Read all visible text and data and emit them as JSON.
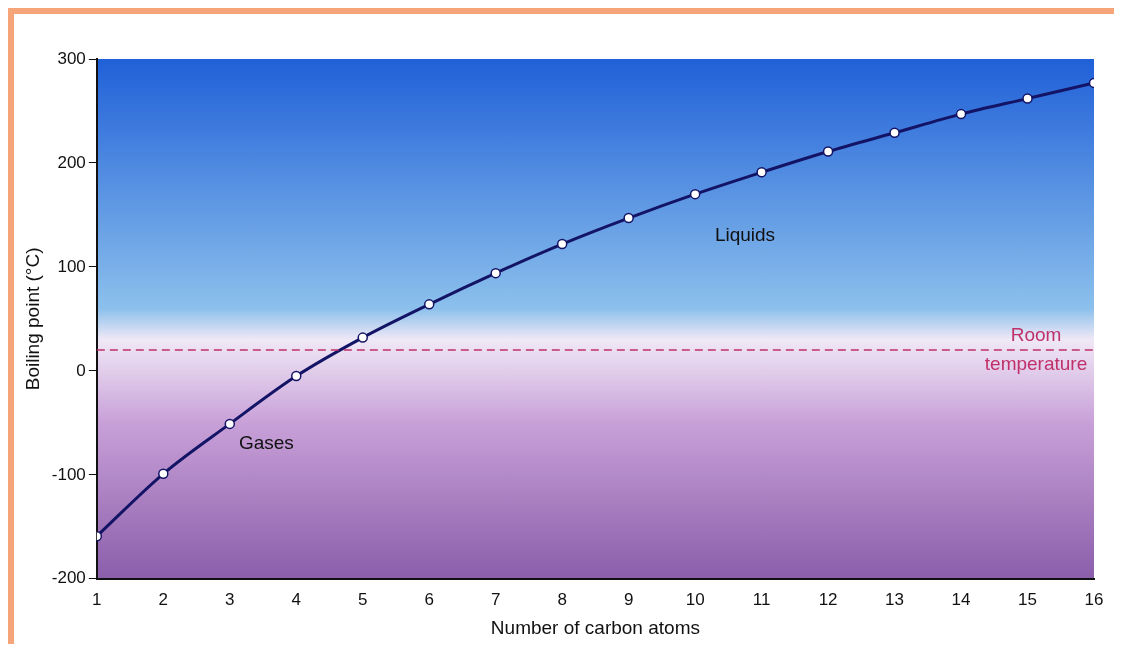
{
  "chart_data": {
    "type": "line",
    "xlabel": "Number of carbon atoms",
    "ylabel": "Boiling point (°C)",
    "x": [
      1,
      2,
      3,
      4,
      5,
      6,
      7,
      8,
      9,
      10,
      11,
      12,
      13,
      14,
      15,
      16
    ],
    "series": [
      {
        "color": "#141466",
        "values": [
          -159,
          -99,
          -51,
          -5,
          32,
          64,
          94,
          122,
          147,
          170,
          191,
          211,
          229,
          247,
          262,
          277
        ]
      }
    ],
    "xlim": [
      1,
      16
    ],
    "xticks": [
      1,
      2,
      3,
      4,
      5,
      6,
      7,
      8,
      9,
      10,
      11,
      12,
      13,
      14,
      15,
      16
    ],
    "ylim": [
      -200,
      300
    ],
    "yticks": [
      -200,
      -100,
      0,
      100,
      200,
      300
    ],
    "ref_lines": [
      {
        "axis": "y",
        "value": 20,
        "label": "Room temperature",
        "color": "#c0306a",
        "line_style": "dashed"
      }
    ],
    "annotations": [
      "Gases",
      "Liquids"
    ],
    "grid": false,
    "legend": false,
    "marker": "circle",
    "line_style": "solid"
  }
}
